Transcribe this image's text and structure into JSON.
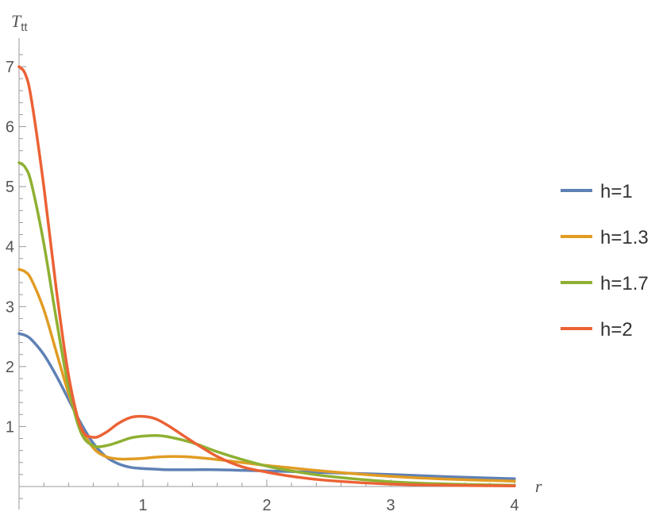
{
  "chart_data": {
    "type": "line",
    "title": "",
    "xlabel": "r",
    "ylabel": "T",
    "ylabel_sub": "tt",
    "xlim": [
      0,
      4
    ],
    "ylim": [
      -0.2,
      7.5
    ],
    "x_ticks": [
      1,
      2,
      3,
      4
    ],
    "y_ticks": [
      1,
      2,
      3,
      4,
      5,
      6,
      7
    ],
    "grid": false,
    "legend_position": "right",
    "series": [
      {
        "name": "h=1",
        "color": "#5E81B5",
        "x": [
          0,
          0.05,
          0.1,
          0.2,
          0.3,
          0.4,
          0.5,
          0.6,
          0.7,
          0.8,
          0.9,
          1.0,
          1.1,
          1.2,
          1.4,
          1.6,
          1.8,
          2.0,
          2.2,
          2.5,
          3.0,
          3.5,
          4.0
        ],
        "values": [
          2.55,
          2.52,
          2.45,
          2.2,
          1.85,
          1.45,
          1.05,
          0.72,
          0.5,
          0.38,
          0.32,
          0.3,
          0.29,
          0.28,
          0.28,
          0.28,
          0.27,
          0.26,
          0.25,
          0.23,
          0.2,
          0.16,
          0.13
        ]
      },
      {
        "name": "h=1.3",
        "color": "#E19C24",
        "x": [
          0,
          0.05,
          0.1,
          0.2,
          0.3,
          0.4,
          0.5,
          0.6,
          0.7,
          0.8,
          0.9,
          1.0,
          1.1,
          1.2,
          1.3,
          1.4,
          1.6,
          1.8,
          2.0,
          2.2,
          2.5,
          3.0,
          3.5,
          4.0
        ],
        "values": [
          3.62,
          3.58,
          3.45,
          2.95,
          2.25,
          1.55,
          0.98,
          0.64,
          0.5,
          0.46,
          0.46,
          0.47,
          0.49,
          0.5,
          0.5,
          0.49,
          0.45,
          0.4,
          0.35,
          0.31,
          0.25,
          0.17,
          0.12,
          0.09
        ]
      },
      {
        "name": "h=1.7",
        "color": "#8FB032",
        "x": [
          0,
          0.05,
          0.1,
          0.2,
          0.3,
          0.4,
          0.5,
          0.6,
          0.7,
          0.8,
          0.9,
          1.0,
          1.1,
          1.2,
          1.4,
          1.6,
          1.8,
          2.0,
          2.2,
          2.5,
          3.0,
          3.5,
          4.0
        ],
        "values": [
          5.4,
          5.32,
          5.05,
          4.05,
          2.8,
          1.65,
          0.9,
          0.68,
          0.68,
          0.74,
          0.81,
          0.84,
          0.85,
          0.83,
          0.73,
          0.58,
          0.45,
          0.34,
          0.26,
          0.17,
          0.08,
          0.04,
          0.02
        ]
      },
      {
        "name": "h=2",
        "color": "#EB6235",
        "x": [
          0,
          0.05,
          0.1,
          0.2,
          0.3,
          0.4,
          0.5,
          0.6,
          0.7,
          0.8,
          0.9,
          1.0,
          1.1,
          1.2,
          1.4,
          1.6,
          1.8,
          2.0,
          2.2,
          2.5,
          3.0,
          3.5,
          4.0
        ],
        "values": [
          7.0,
          6.88,
          6.45,
          5.0,
          3.3,
          1.85,
          0.98,
          0.82,
          0.9,
          1.05,
          1.15,
          1.17,
          1.13,
          1.02,
          0.75,
          0.5,
          0.33,
          0.24,
          0.17,
          0.1,
          0.04,
          0.02,
          0.01
        ]
      }
    ]
  }
}
